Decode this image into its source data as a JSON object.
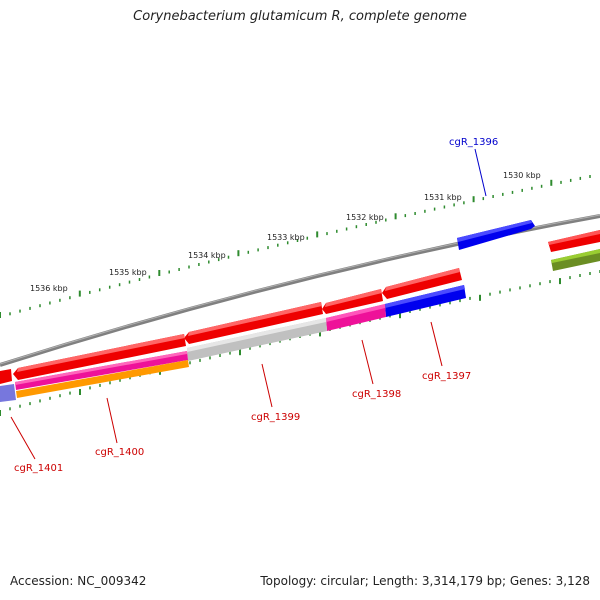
{
  "title": "Corynebacterium glutamicum R, complete genome",
  "footer": {
    "accession": "Accession: NC_009342",
    "topology": "Topology: circular; Length: 3,314,179 bp; Genes: 3,128"
  },
  "scale_labels": [
    "1530 kbp",
    "1531 kbp",
    "1532 kbp",
    "1533 kbp",
    "1534 kbp",
    "1535 kbp",
    "1536 kbp"
  ],
  "gene_labels": [
    "cgR_1396",
    "cgR_1397",
    "cgR_1398",
    "cgR_1399",
    "cgR_1400",
    "cgR_1401"
  ],
  "colors": {
    "backbone": "#808080",
    "ticks": "#2e8b2e",
    "label_plus": "#0000cc",
    "label_minus": "#cc0000",
    "red": "#ee0000",
    "blue": "#0000ee",
    "magenta": "#ee1199",
    "gray": "#c0c0c0",
    "orange": "#ff9900",
    "olive": "#6b8e23",
    "slate": "#7777dd"
  }
}
